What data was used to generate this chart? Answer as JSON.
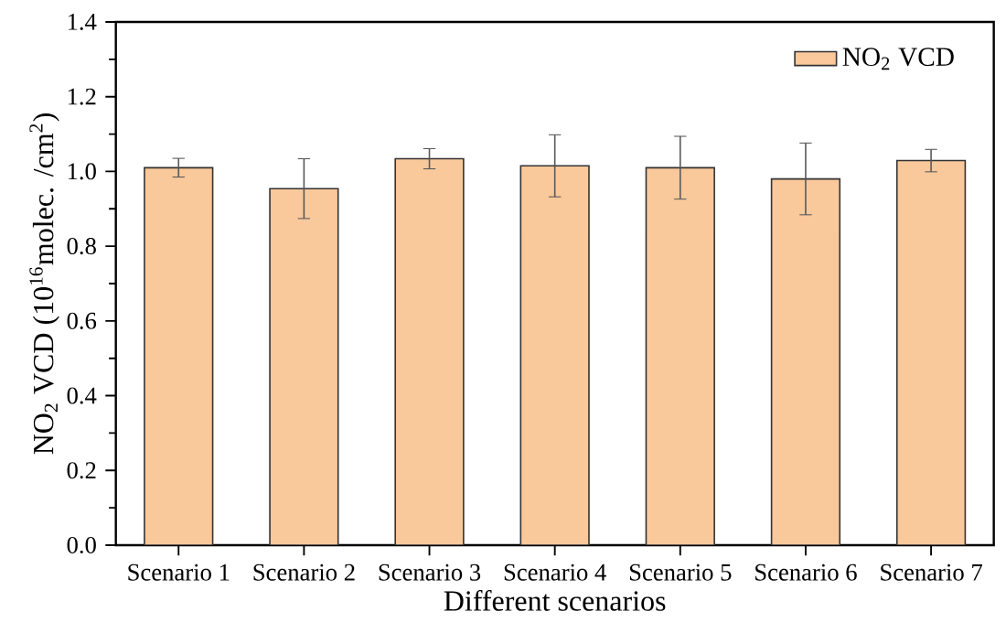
{
  "chart_data": {
    "type": "bar",
    "xlabel": "Different scenarios",
    "ylabel": "NO$_{2}$ VCD (10$^{16}$molec. /cm$^{2}$)",
    "categories": [
      "Scenario 1",
      "Scenario 2",
      "Scenario 3",
      "Scenario 4",
      "Scenario 5",
      "Scenario 6",
      "Scenario 7"
    ],
    "series": [
      {
        "name": "NO$_{2}$ VCD",
        "color": "#f9c89b",
        "values": [
          1.01,
          0.954,
          1.034,
          1.015,
          1.01,
          0.98,
          1.029
        ],
        "errors": [
          0.025,
          0.08,
          0.027,
          0.083,
          0.084,
          0.096,
          0.03
        ]
      }
    ],
    "ylim": [
      0,
      1.4
    ],
    "yticks": [
      {
        "value": 0,
        "label": "0.0"
      },
      0.2,
      0.4,
      0.6,
      0.8,
      {
        "value": 1,
        "label": "1.0"
      },
      1.2,
      1.4
    ],
    "legend": "top right",
    "grid": false
  }
}
